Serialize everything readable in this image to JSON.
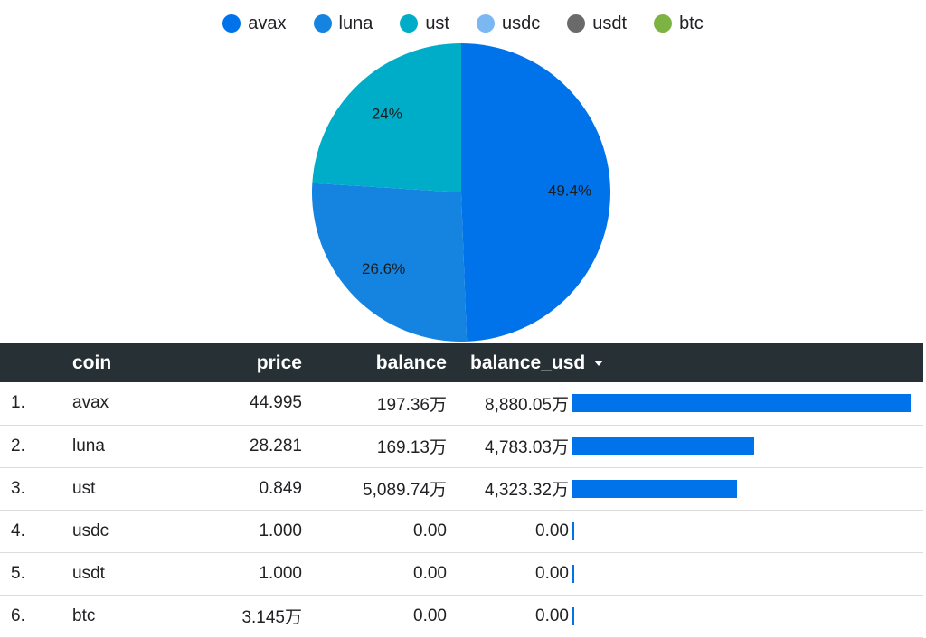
{
  "chart_data": {
    "type": "pie",
    "title": "",
    "legend": {
      "placement": "top-center",
      "entries": [
        {
          "name": "avax",
          "color": "#0073EA"
        },
        {
          "name": "luna",
          "color": "#1584E1"
        },
        {
          "name": "ust",
          "color": "#00ADC8"
        },
        {
          "name": "usdc",
          "color": "#7BB7F1"
        },
        {
          "name": "usdt",
          "color": "#6A6A6A"
        },
        {
          "name": "btc",
          "color": "#7CB342"
        }
      ]
    },
    "slices": [
      {
        "name": "avax",
        "value": 49.4,
        "label": "49.4%",
        "color": "#0073EA"
      },
      {
        "name": "luna",
        "value": 26.6,
        "label": "26.6%",
        "color": "#1584E1"
      },
      {
        "name": "ust",
        "value": 24,
        "label": "24%",
        "color": "#00ADC8"
      }
    ]
  },
  "table": {
    "columns": {
      "index": "",
      "coin": "coin",
      "price": "price",
      "balance": "balance",
      "balance_usd": "balance_usd"
    },
    "sort_icon": "caret-down-icon",
    "bar_color": "#0073EA",
    "bar_max": 8880.05,
    "rows": [
      {
        "index": "1.",
        "coin": "avax",
        "price": "44.995",
        "balance": "197.36万",
        "balance_usd": "8,880.05万",
        "bar_value": 8880.05
      },
      {
        "index": "2.",
        "coin": "luna",
        "price": "28.281",
        "balance": "169.13万",
        "balance_usd": "4,783.03万",
        "bar_value": 4783.03
      },
      {
        "index": "3.",
        "coin": "ust",
        "price": "0.849",
        "balance": "5,089.74万",
        "balance_usd": "4,323.32万",
        "bar_value": 4323.32
      },
      {
        "index": "4.",
        "coin": "usdc",
        "price": "1.000",
        "balance": "0.00",
        "balance_usd": "0.00",
        "bar_value": 0
      },
      {
        "index": "5.",
        "coin": "usdt",
        "price": "1.000",
        "balance": "0.00",
        "balance_usd": "0.00",
        "bar_value": 0
      },
      {
        "index": "6.",
        "coin": "btc",
        "price": "3.145万",
        "balance": "0.00",
        "balance_usd": "0.00",
        "bar_value": 0
      }
    ]
  }
}
